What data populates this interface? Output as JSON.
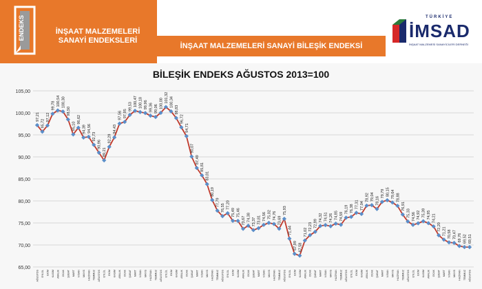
{
  "header": {
    "logo_text": "ENDEKS",
    "left_title_line1": "İNŞAAT MALZEMELERİ",
    "left_title_line2": "SANAYİ ENDEKSLERİ",
    "band_title": "İNŞAAT MALZEMELERİ SANAYİ BİLEŞİK ENDEKSİ",
    "brand_top": "TÜRKİYE",
    "brand": "İMSAD",
    "brand_sub": "İNŞAAT MALZEMESİ SANAYİCİLERİ DERNEĞİ"
  },
  "colors": {
    "orange": "#e8782a",
    "line": "#c0392b",
    "marker": "#5b8ec9",
    "grid": "#cccccc"
  },
  "chart_data": {
    "type": "line",
    "title": "BİLEŞİK ENDEKS AĞUSTOS 2013=100",
    "ylim": [
      65,
      105
    ],
    "yticks": [
      "65,00",
      "70,00",
      "75,00",
      "80,00",
      "85,00",
      "90,00",
      "95,00",
      "100,00",
      "105,00"
    ],
    "grid": true,
    "series": [
      {
        "values": [
          97.21,
          95.72,
          97.12,
          99.78,
          100.54,
          100.3,
          98.5,
          95.1,
          96.62,
          94.39,
          94.56,
          92.73,
          90.96,
          89.21,
          92.29,
          94.43,
          97.56,
          97.95,
          99.53,
          100.47,
          100.18,
          99.96,
          99.36,
          99.06,
          100.0,
          101.32,
          100.34,
          98.83,
          96.72,
          94.71,
          90.07,
          87.49,
          85.81,
          83.81,
          80.19,
          77.79,
          76.55,
          77.2,
          75.49,
          75.46,
          73.67,
          74.38,
          73.37,
          73.81,
          74.56,
          75.02,
          74.76,
          73.69,
          75.93,
          71.44,
          67.99,
          67.58,
          71.02,
          72.23,
          72.99,
          74.32,
          74.51,
          74.26,
          74.85,
          74.59,
          76.19,
          76.38,
          77.31,
          77.04,
          78.92,
          79.04,
          78.16,
          79.79,
          80.15,
          79.64,
          78.88,
          76.91,
          75.33,
          74.56,
          74.92,
          75.39,
          74.95,
          74.21,
          72.2,
          71.21,
          70.58,
          70.47,
          69.76,
          69.52,
          69.51
        ],
        "data_labels": [
          "97,21",
          "95,72",
          "97,12",
          "99,78",
          "100,54",
          "100,30",
          "98,50",
          "95,10",
          "96,62",
          "94,39",
          "94,56",
          "92,73",
          "90,96",
          "89,21",
          "92,29",
          "94,43",
          "97,56",
          "97,95",
          "99,53",
          "100,47",
          "100,18",
          "99,96",
          "99,36",
          "99,06",
          "100,00",
          "101,32",
          "100,34",
          "98,83",
          "96,72",
          "94,71",
          "90,07",
          "87,49",
          "85,81",
          "83,81",
          "80,19",
          "77,79",
          "76,55",
          "77,20",
          "75,49",
          "75,46",
          "73,67",
          "74,38",
          "73,37",
          "73,81",
          "74,56",
          "75,02",
          "74,76",
          "73,69",
          "75,93",
          "71,44",
          "67,99",
          "67,58",
          "71,02",
          "72,23",
          "72,99",
          "74,32",
          "74,51",
          "74,26",
          "74,85",
          "74,59",
          "76,19",
          "76,38",
          "77,31",
          "77,04",
          "78,92",
          "79,04",
          "78,16",
          "79,79",
          "80,15",
          "79,64",
          "78,88",
          "76,91",
          "75,33",
          "74,56",
          "74,92",
          "75,39",
          "74,95",
          "74,21",
          "72,20",
          "71,21",
          "70,58",
          "70,47",
          "69,76",
          "69,52",
          "69,51"
        ]
      }
    ],
    "x": [
      "AĞUSTOS",
      "EYLÜL",
      "EKİM",
      "KASIM",
      "ARALIK",
      "OCAK",
      "ŞUBAT",
      "MART",
      "NİSAN",
      "MAYIS",
      "HAZİRAN",
      "TEMMUZ",
      "AĞUSTOS",
      "EYLÜL",
      "EKİM",
      "KASIM",
      "ARALIK",
      "OCAK",
      "ŞUBAT",
      "MART",
      "NİSAN",
      "MAYIS",
      "HAZİRAN",
      "TEMMUZ",
      "AĞUSTOS",
      "EYLÜL",
      "EKİM",
      "KASIM",
      "ARALIK",
      "OCAK",
      "ŞUBAT",
      "MART",
      "NİSAN",
      "MAYIS",
      "HAZİRAN",
      "TEMMUZ",
      "AĞUSTOS",
      "EYLÜL",
      "EKİM",
      "KASIM",
      "ARALIK",
      "OCAK",
      "ŞUBAT",
      "MART",
      "NİSAN",
      "MAYIS",
      "HAZİRAN",
      "TEMMUZ",
      "AĞUSTOS",
      "EYLÜL",
      "EKİM",
      "KASIM",
      "ARALIK",
      "OCAK",
      "ŞUBAT",
      "MART",
      "NİSAN",
      "MAYIS",
      "HAZİRAN",
      "TEMMUZ",
      "AĞUSTOS",
      "EYLÜL",
      "EKİM",
      "KASIM",
      "ARALIK",
      "OCAK",
      "ŞUBAT",
      "MART",
      "NİSAN",
      "MAYIS",
      "HAZİRAN",
      "TEMMUZ",
      "AĞUSTOS",
      "EYLÜL",
      "EKİM",
      "KASIM",
      "ARALIK",
      "OCAK",
      "ŞUBAT",
      "MART",
      "NİSAN",
      "MAYIS",
      "HAZİRAN",
      "TEMMUZ",
      "AĞUSTOS"
    ]
  }
}
